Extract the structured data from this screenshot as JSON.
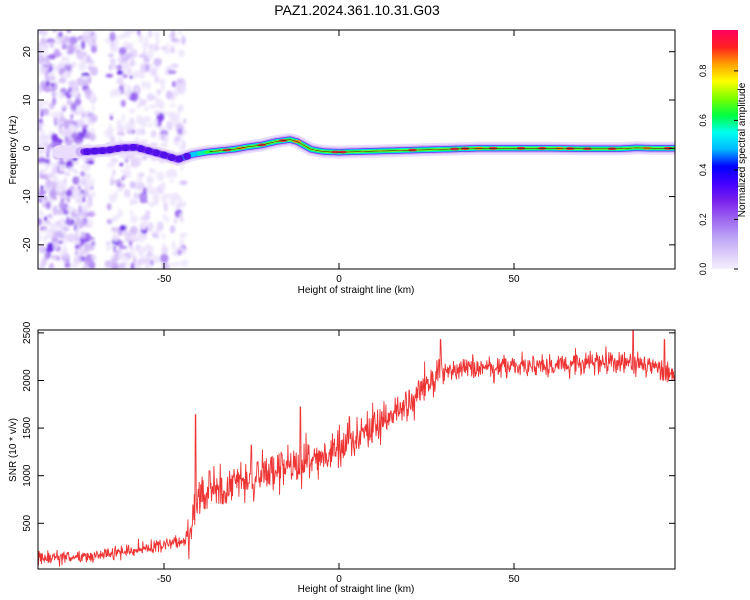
{
  "title": "PAZ1.2024.361.10.31.G03",
  "chart_data": [
    {
      "type": "heatmap",
      "xlabel": "Height of straight line (km)",
      "ylabel": "Frequency (Hz)",
      "xlim": [
        -86,
        96
      ],
      "ylim": [
        -25,
        24.5
      ],
      "xticks": [
        -50,
        0,
        50
      ],
      "yticks": [
        -20,
        -10,
        0,
        10,
        20
      ],
      "xtick_labels": [
        "-50",
        "0",
        "50"
      ],
      "ytick_labels": [
        "-20",
        "-10",
        "0",
        "10",
        "20"
      ],
      "ridge": {
        "x": [
          -72,
          -66,
          -62,
          -58,
          -54,
          -50,
          -46,
          -42,
          -38,
          -34,
          -30,
          -26,
          -22,
          -18,
          -14,
          -12,
          -10,
          -8,
          -6,
          -4,
          0,
          10,
          20,
          30,
          40,
          50,
          60,
          70,
          80,
          85,
          90,
          96
        ],
        "freq": [
          -0.7,
          -0.4,
          0.1,
          0.2,
          -0.6,
          -1.4,
          -2.3,
          -1.3,
          -0.8,
          -0.5,
          -0.2,
          0.3,
          0.7,
          1.4,
          1.8,
          1.4,
          0.6,
          -0.2,
          -0.5,
          -0.7,
          -0.8,
          -0.6,
          -0.4,
          -0.2,
          0.0,
          0.0,
          0.0,
          -0.1,
          -0.1,
          0.1,
          0.0,
          0.0
        ]
      },
      "colorbar": {
        "label": "Normalized spectral amplitude",
        "range": [
          0,
          1
        ],
        "ticks": [
          0.0,
          0.2,
          0.4,
          0.6,
          0.8
        ],
        "tick_labels": [
          "0.0",
          "0.2",
          "0.4",
          "0.6",
          "0.8"
        ],
        "colormap": [
          "#f5f0ff",
          "#d8c8f8",
          "#b89cf4",
          "#9b60f0",
          "#7a20ec",
          "#4400ff",
          "#0000ff",
          "#00b8ff",
          "#00ffee",
          "#00ff40",
          "#7cff00",
          "#ffff00",
          "#ffa000",
          "#ff2020",
          "#ff0060"
        ]
      }
    },
    {
      "type": "line",
      "xlabel": "Height of straight line (km)",
      "ylabel": "SNR (10 * v/v)",
      "xlim": [
        -86,
        96
      ],
      "ylim": [
        20,
        2530
      ],
      "xticks": [
        -50,
        0,
        50
      ],
      "yticks": [
        500,
        1000,
        1500,
        2000,
        2500
      ],
      "xtick_labels": [
        "-50",
        "0",
        "50"
      ],
      "ytick_labels": [
        "500",
        "1000",
        "1500",
        "2000",
        "2500"
      ],
      "series_color": "#ee3333",
      "trend": {
        "x": [
          -86,
          -70,
          -60,
          -50,
          -45,
          -43,
          -40,
          -35,
          -30,
          -25,
          -20,
          -15,
          -10,
          -5,
          0,
          5,
          10,
          15,
          20,
          25,
          30,
          35,
          40,
          50,
          60,
          70,
          80,
          90,
          96
        ],
        "y": [
          130,
          150,
          210,
          270,
          310,
          350,
          760,
          850,
          900,
          990,
          1030,
          1080,
          1120,
          1180,
          1280,
          1420,
          1530,
          1660,
          1790,
          1940,
          2080,
          2110,
          2130,
          2150,
          2150,
          2170,
          2200,
          2150,
          2050
        ]
      },
      "spikes": [
        {
          "x": -41,
          "y": 1640
        },
        {
          "x": -11,
          "y": 1720
        },
        {
          "x": 29,
          "y": 2430
        },
        {
          "x": 84,
          "y": 2550
        },
        {
          "x": 93,
          "y": 2430
        },
        {
          "x": -37,
          "y": 1050
        },
        {
          "x": -25,
          "y": 1320
        },
        {
          "x": 3,
          "y": 1620
        }
      ]
    }
  ]
}
